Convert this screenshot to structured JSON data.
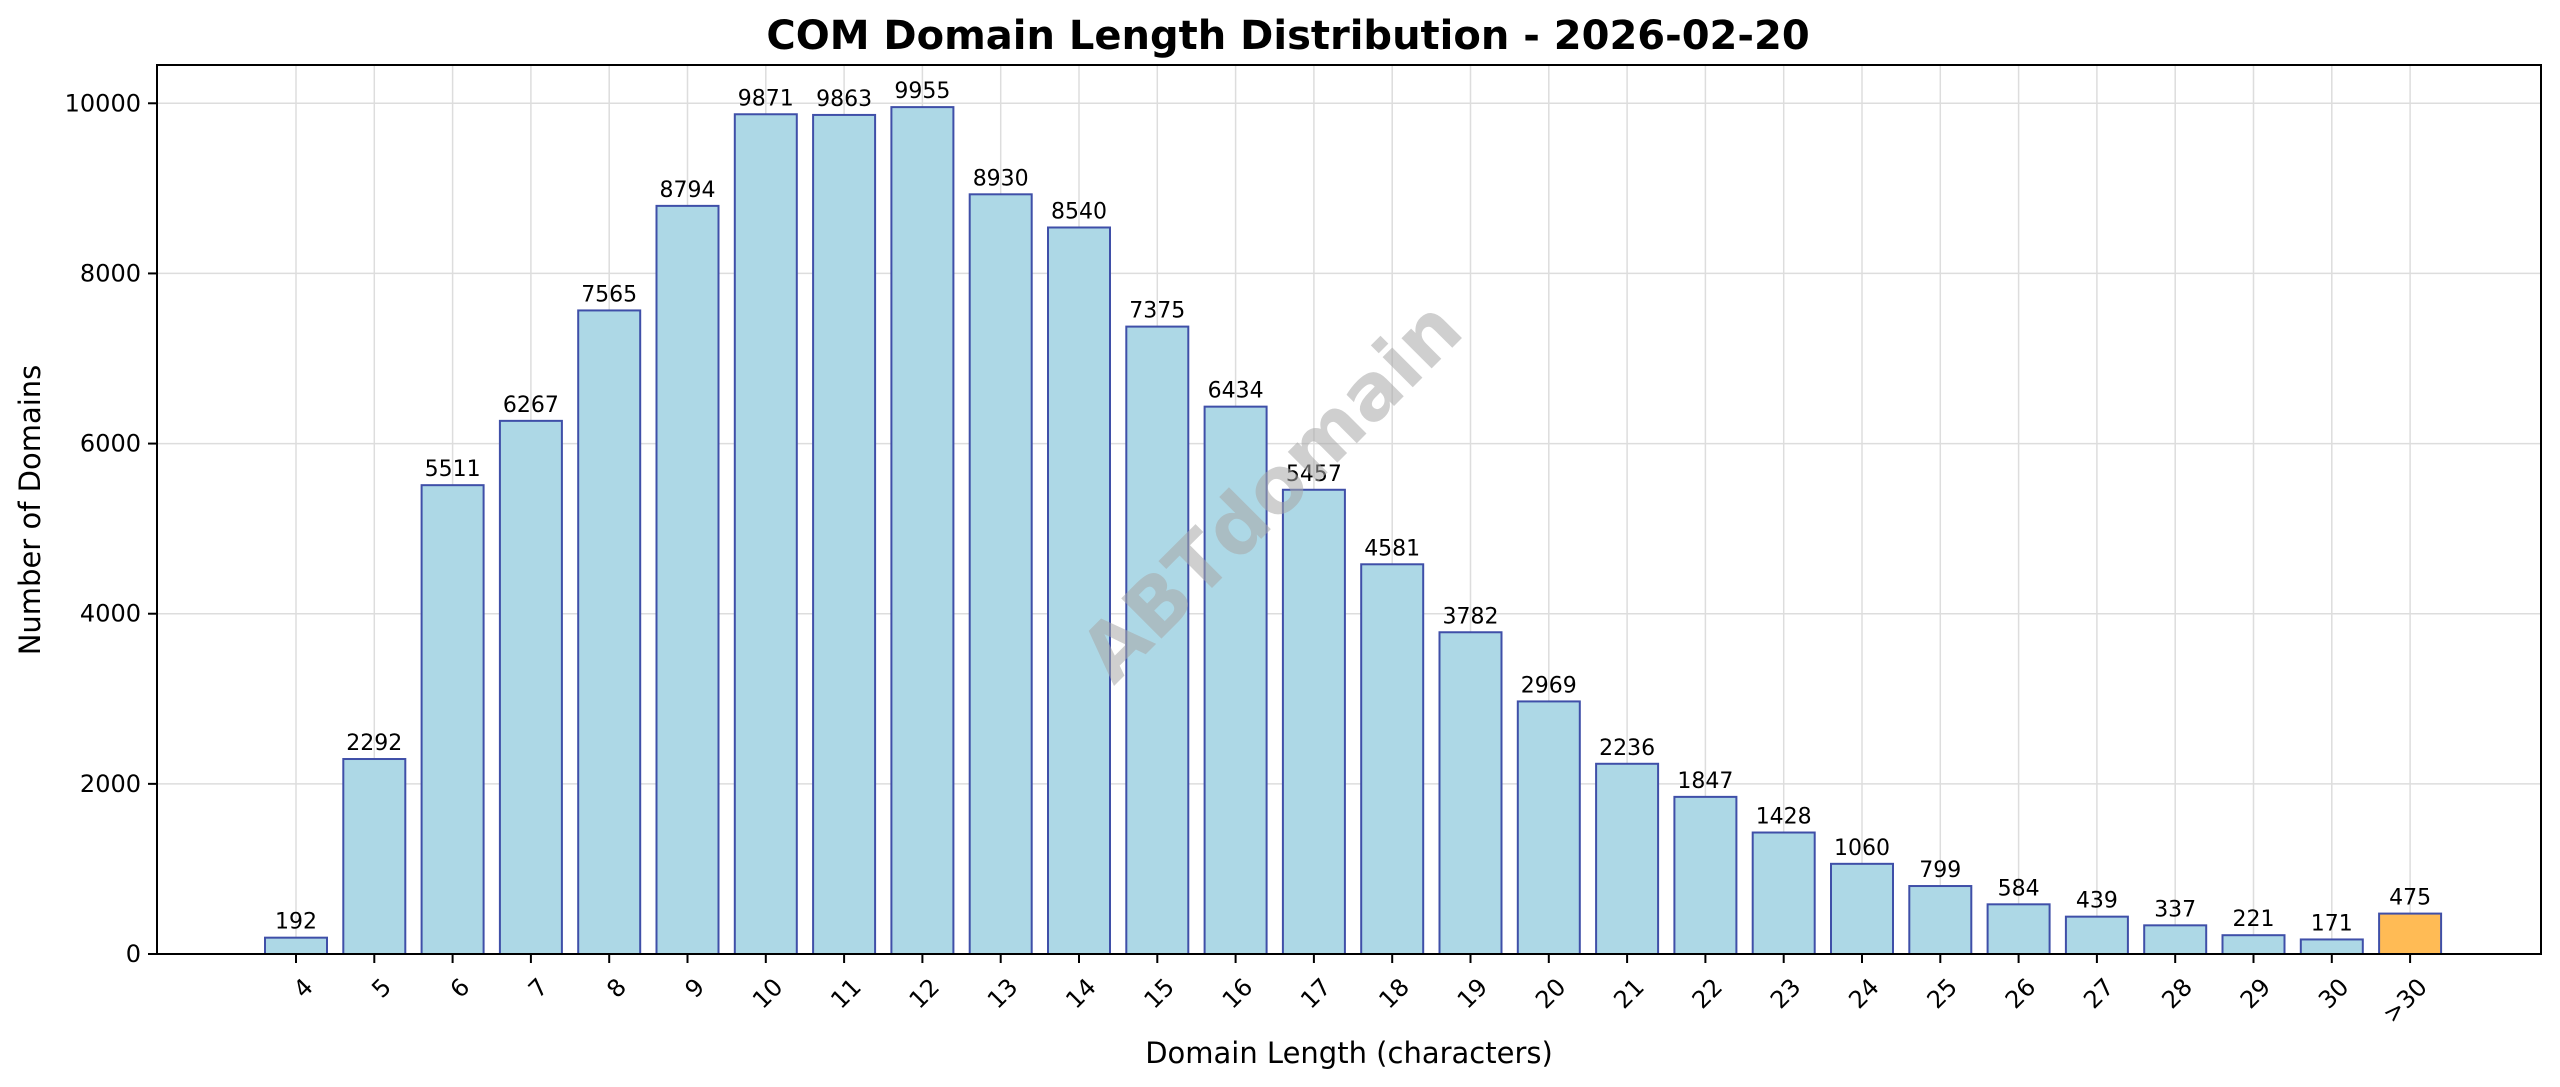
{
  "chart_data": {
    "type": "bar",
    "title": "COM Domain Length Distribution - 2026-02-20",
    "xlabel": "Domain Length (characters)",
    "ylabel": "Number of Domains",
    "categories": [
      "4",
      "5",
      "6",
      "7",
      "8",
      "9",
      "10",
      "11",
      "12",
      "13",
      "14",
      "15",
      "16",
      "17",
      "18",
      "19",
      "20",
      "21",
      "22",
      "23",
      "24",
      "25",
      "26",
      "27",
      "28",
      "29",
      "30",
      ">30"
    ],
    "values": [
      192,
      2292,
      5511,
      6267,
      7565,
      8794,
      9871,
      9863,
      9955,
      8930,
      8540,
      7375,
      6434,
      5457,
      4581,
      3782,
      2969,
      2236,
      1847,
      1428,
      1060,
      799,
      584,
      439,
      337,
      221,
      171,
      475
    ],
    "yticks": [
      0,
      2000,
      4000,
      6000,
      8000,
      10000
    ],
    "ylim": [
      0,
      10450
    ],
    "grid": true,
    "legend": "none",
    "colors": {
      "bar_fill": "#add8e6",
      "bar_edge": "#3f4fa8",
      "highlight_fill": "#ffbb55",
      "highlight_edge": "#3f4fa8",
      "grid": "#dddddd"
    },
    "highlight_category": ">30"
  },
  "watermark": "ABTdomain"
}
